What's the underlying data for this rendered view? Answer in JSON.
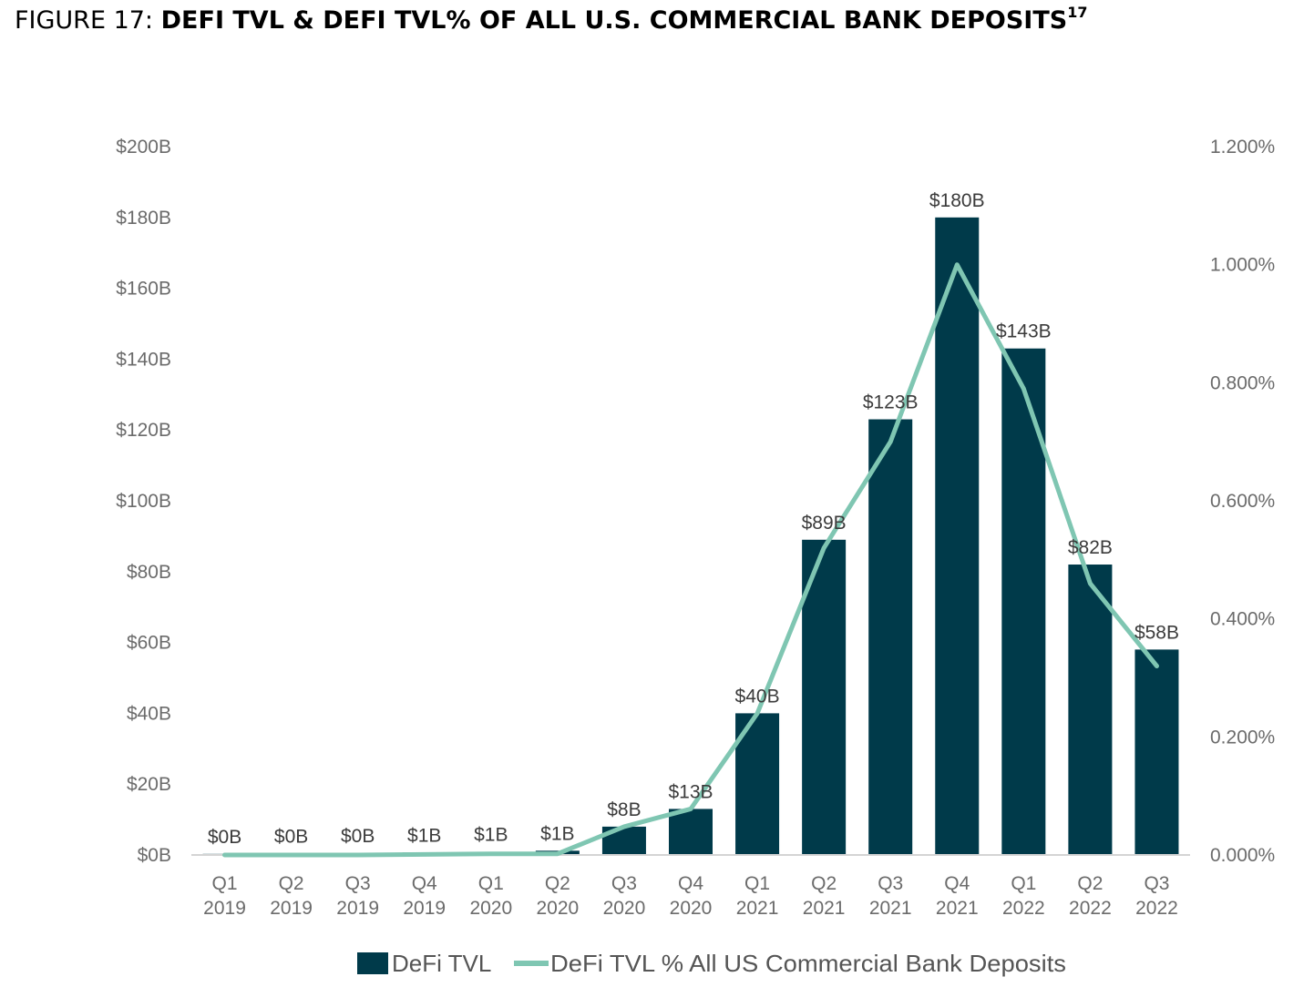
{
  "figure": {
    "prefix": "FIGURE 17:",
    "title": "DEFI TVL & DEFI TVL% OF ALL U.S. COMMERCIAL BANK DEPOSITS",
    "footnote": "17"
  },
  "chart_data": {
    "type": "bar",
    "categories": [
      [
        "Q1",
        "2019"
      ],
      [
        "Q2",
        "2019"
      ],
      [
        "Q3",
        "2019"
      ],
      [
        "Q4",
        "2019"
      ],
      [
        "Q1",
        "2020"
      ],
      [
        "Q2",
        "2020"
      ],
      [
        "Q3",
        "2020"
      ],
      [
        "Q4",
        "2020"
      ],
      [
        "Q1",
        "2021"
      ],
      [
        "Q2",
        "2021"
      ],
      [
        "Q3",
        "2021"
      ],
      [
        "Q4",
        "2021"
      ],
      [
        "Q1",
        "2022"
      ],
      [
        "Q2",
        "2022"
      ],
      [
        "Q3",
        "2022"
      ]
    ],
    "series": [
      {
        "name": "DeFi TVL",
        "type": "bar",
        "axis": "left",
        "color": "#003a4a",
        "values": [
          0.3,
          0.4,
          0.5,
          0.7,
          0.9,
          1.2,
          8,
          13,
          40,
          89,
          123,
          180,
          143,
          82,
          58
        ],
        "data_labels": [
          "$0B",
          "$0B",
          "$0B",
          "$1B",
          "$1B",
          "$1B",
          "$8B",
          "$13B",
          "$40B",
          "$89B",
          "$123B",
          "$180B",
          "$143B",
          "$82B",
          "$58B"
        ]
      },
      {
        "name": "DeFi TVL % All US Commercial Bank Deposits",
        "type": "line",
        "axis": "right",
        "color": "#7fc6b2",
        "values": [
          0.0,
          0.0,
          0.0,
          0.001,
          0.002,
          0.002,
          0.048,
          0.078,
          0.24,
          0.52,
          0.7,
          1.0,
          0.79,
          0.46,
          0.32
        ]
      }
    ],
    "y_left": {
      "ylim": [
        0,
        200
      ],
      "ticks": [
        0,
        20,
        40,
        60,
        80,
        100,
        120,
        140,
        160,
        180,
        200
      ],
      "tick_labels": [
        "$0B",
        "$20B",
        "$40B",
        "$60B",
        "$80B",
        "$100B",
        "$120B",
        "$140B",
        "$160B",
        "$180B",
        "$200B"
      ]
    },
    "y_right": {
      "ylim": [
        0,
        1.2
      ],
      "ticks": [
        0,
        0.2,
        0.4,
        0.6,
        0.8,
        1.0,
        1.2
      ],
      "tick_labels": [
        "0.000%",
        "0.200%",
        "0.400%",
        "0.600%",
        "0.800%",
        "1.000%",
        "1.200%"
      ]
    },
    "legend": {
      "placement": "bottom-center",
      "entries": [
        "DeFi TVL",
        "DeFi TVL % All US Commercial Bank Deposits"
      ]
    },
    "grid": false
  }
}
